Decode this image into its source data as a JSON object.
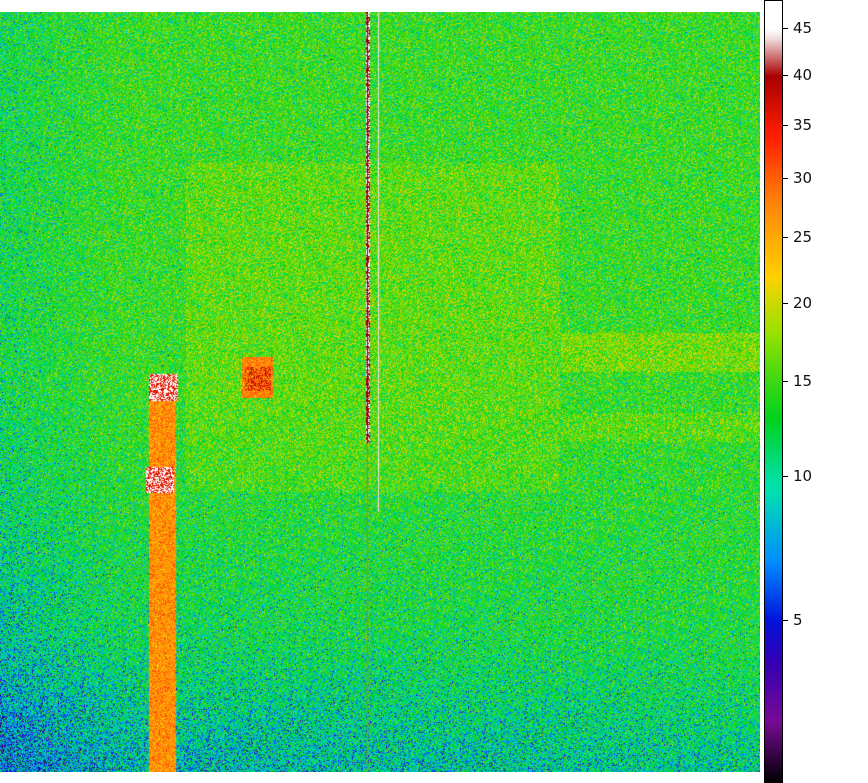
{
  "chart_data": {
    "type": "heatmap",
    "title": "",
    "xlabel": "",
    "ylabel": "",
    "colorbar": {
      "ticks": [
        45,
        40,
        35,
        30,
        25,
        20,
        15,
        10,
        5
      ],
      "tick_labels": [
        "45",
        "40",
        "35",
        "30",
        "25",
        "20",
        "15",
        "10",
        "5"
      ],
      "range": [
        1,
        47
      ],
      "colormap": [
        "#000000",
        "#7a0a9a",
        "#3a00b0",
        "#0010d8",
        "#0088ff",
        "#00e0b0",
        "#00d020",
        "#a0e000",
        "#ffd000",
        "#ff8000",
        "#ff2000",
        "#b00000",
        "#ffffff"
      ]
    },
    "background_level": 14,
    "colors": {
      "frame": "#000000"
    }
  }
}
